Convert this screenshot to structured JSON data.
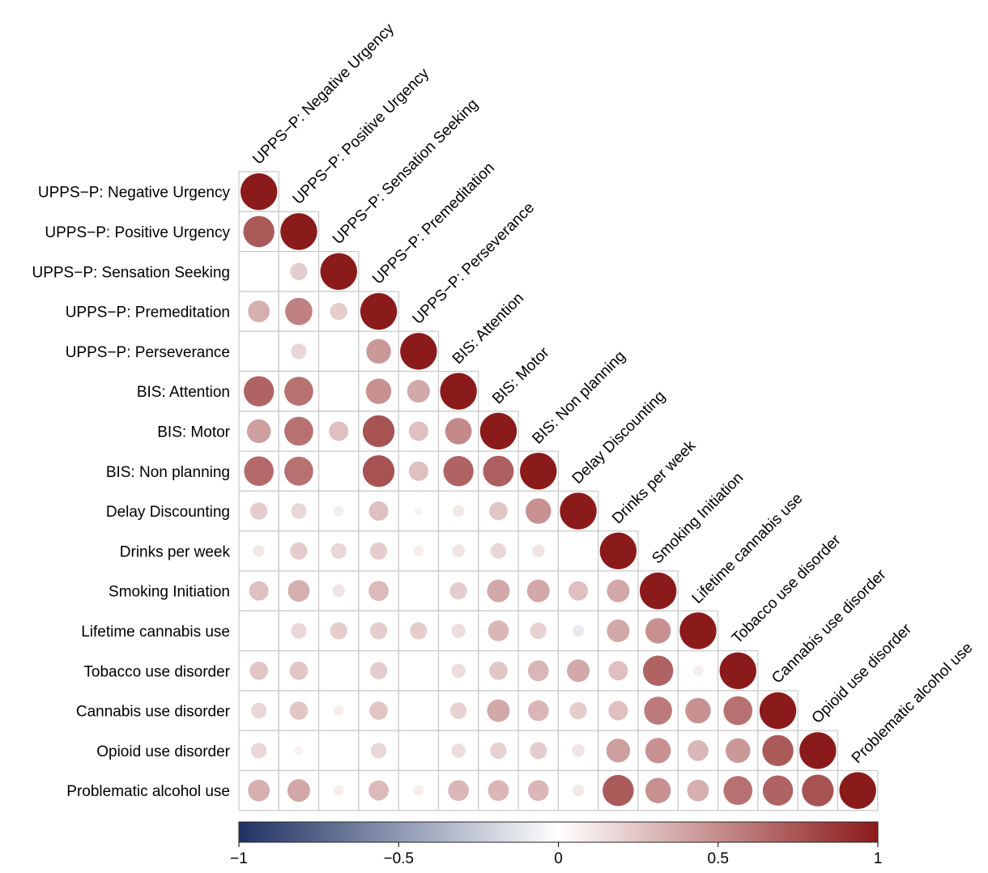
{
  "chart_data": {
    "type": "heatmap",
    "variables": [
      "UPPS−P: Negative Urgency",
      "UPPS−P: Positive Urgency",
      "UPPS−P: Sensation Seeking",
      "UPPS−P: Premeditation",
      "UPPS−P: Perseverance",
      "BIS: Attention",
      "BIS: Motor",
      "BIS: Non planning",
      "Delay Discounting",
      "Drinks per week",
      "Smoking Initiation",
      "Lifetime cannabis use",
      "Tobacco use disorder",
      "Cannabis use disorder",
      "Opioid use disorder",
      "Problematic alcohol use"
    ],
    "matrix": [
      [
        1
      ],
      [
        0.72,
        1
      ],
      [
        null,
        0.22,
        1
      ],
      [
        0.35,
        0.55,
        0.22,
        1
      ],
      [
        null,
        0.18,
        null,
        0.45,
        1
      ],
      [
        0.68,
        0.62,
        null,
        0.48,
        0.38,
        1
      ],
      [
        0.42,
        0.62,
        0.28,
        0.75,
        0.28,
        0.52,
        1
      ],
      [
        0.65,
        0.62,
        null,
        0.75,
        0.28,
        0.68,
        0.7,
        1
      ],
      [
        0.22,
        0.18,
        -0.08,
        0.28,
        -0.05,
        0.1,
        0.25,
        0.48,
        1
      ],
      [
        0.1,
        0.22,
        0.18,
        0.22,
        0.08,
        0.12,
        0.18,
        0.12,
        null,
        1
      ],
      [
        0.28,
        0.35,
        0.12,
        0.3,
        null,
        0.22,
        0.38,
        0.38,
        0.28,
        0.38,
        1
      ],
      [
        null,
        0.18,
        0.22,
        0.22,
        0.22,
        0.15,
        0.32,
        0.2,
        -0.1,
        0.38,
        0.48,
        1
      ],
      [
        0.25,
        0.25,
        null,
        0.22,
        null,
        0.15,
        0.25,
        0.32,
        0.38,
        0.28,
        0.68,
        0.08,
        1
      ],
      [
        0.18,
        0.25,
        0.08,
        0.25,
        null,
        0.2,
        0.38,
        0.32,
        0.22,
        0.28,
        0.58,
        0.48,
        0.62,
        1
      ],
      [
        0.18,
        0.06,
        null,
        0.18,
        null,
        0.15,
        0.2,
        0.22,
        0.12,
        0.42,
        0.48,
        0.32,
        0.45,
        0.72,
        1
      ],
      [
        0.35,
        0.38,
        0.08,
        0.3,
        0.08,
        0.32,
        0.32,
        0.32,
        0.1,
        0.72,
        0.48,
        0.35,
        0.62,
        0.68,
        0.75,
        1
      ]
    ],
    "colorbar": {
      "min": -1,
      "max": 1,
      "ticks": [
        -1,
        -0.5,
        0,
        0.5,
        1
      ],
      "tick_labels": [
        "−1",
        "−0.5",
        "0",
        "0.5",
        "1"
      ],
      "colors": [
        "#1f3163",
        "#ffffff",
        "#8b1a1a"
      ]
    },
    "title": "",
    "xlabel": "",
    "ylabel": ""
  }
}
